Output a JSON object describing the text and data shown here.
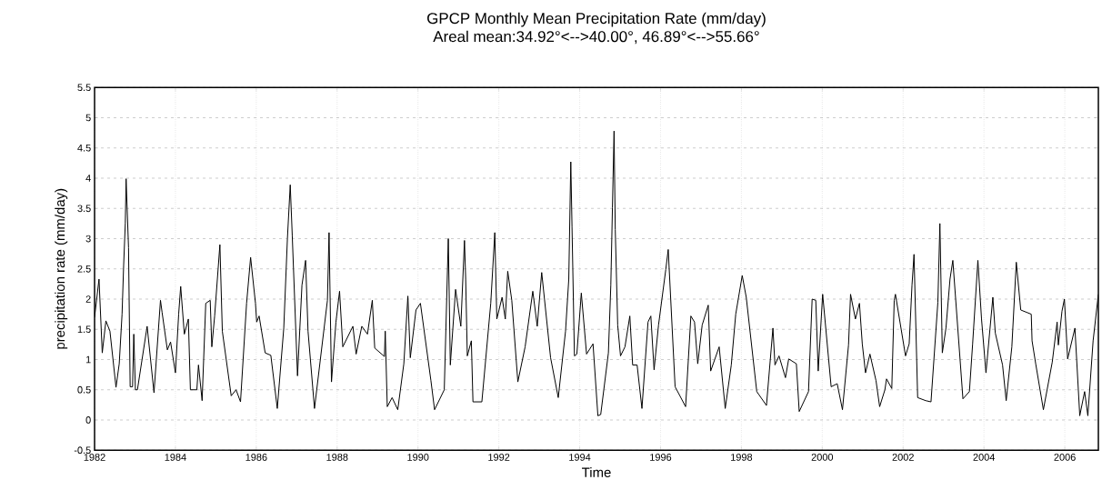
{
  "chart_data": {
    "type": "line",
    "title": "GPCP Monthly Mean Precipitation Rate (mm/day)",
    "subtitle": "Areal mean:34.92°<-->40.00°, 46.89°<-->55.66°",
    "xlabel": "Time",
    "ylabel": "precipitation rate (mm/day)",
    "x": [
      1982.0,
      1982.11,
      1982.19,
      1982.28,
      1982.38,
      1982.53,
      1982.61,
      1982.68,
      1982.72,
      1982.76,
      1982.78,
      1982.84,
      1982.88,
      1982.94,
      1982.97,
      1983.01,
      1983.06,
      1983.3,
      1983.47,
      1983.63,
      1983.67,
      1983.8,
      1983.88,
      1984.0,
      1984.08,
      1984.13,
      1984.22,
      1984.32,
      1984.37,
      1984.53,
      1984.57,
      1984.66,
      1984.75,
      1984.86,
      1984.9,
      1984.97,
      1985.1,
      1985.16,
      1985.38,
      1985.5,
      1985.61,
      1985.76,
      1985.86,
      1985.98,
      1986.01,
      1986.07,
      1986.22,
      1986.36,
      1986.52,
      1986.68,
      1986.77,
      1986.84,
      1986.89,
      1987.02,
      1987.13,
      1987.22,
      1987.28,
      1987.44,
      1987.76,
      1987.8,
      1987.86,
      1987.97,
      1988.06,
      1988.14,
      1988.39,
      1988.47,
      1988.61,
      1988.75,
      1988.87,
      1988.93,
      1989.17,
      1989.19,
      1989.24,
      1989.36,
      1989.5,
      1989.65,
      1989.75,
      1989.81,
      1989.95,
      1990.06,
      1990.32,
      1990.41,
      1990.65,
      1990.75,
      1990.8,
      1990.93,
      1991.06,
      1991.15,
      1991.18,
      1991.22,
      1991.32,
      1991.36,
      1991.58,
      1991.8,
      1991.9,
      1991.95,
      1992.08,
      1992.16,
      1992.22,
      1992.32,
      1992.47,
      1992.65,
      1992.84,
      1992.95,
      1993.06,
      1993.28,
      1993.47,
      1993.65,
      1993.73,
      1993.78,
      1993.81,
      1993.87,
      1993.93,
      1994.04,
      1994.17,
      1994.33,
      1994.45,
      1994.52,
      1994.71,
      1994.77,
      1994.81,
      1994.85,
      1994.88,
      1994.94,
      1995.01,
      1995.12,
      1995.24,
      1995.31,
      1995.42,
      1995.54,
      1995.69,
      1995.76,
      1995.84,
      1995.95,
      1996.13,
      1996.19,
      1996.36,
      1996.62,
      1996.75,
      1996.84,
      1996.92,
      1997.03,
      1997.18,
      1997.24,
      1997.45,
      1997.6,
      1997.75,
      1997.86,
      1998.02,
      1998.12,
      1998.38,
      1998.62,
      1998.78,
      1998.83,
      1998.93,
      1999.09,
      1999.17,
      1999.36,
      1999.43,
      1999.66,
      1999.75,
      1999.84,
      1999.9,
      2000.01,
      2000.22,
      2000.37,
      2000.5,
      2000.65,
      2000.7,
      2000.82,
      2000.92,
      2000.99,
      2001.07,
      2001.18,
      2001.33,
      2001.42,
      2001.55,
      2001.59,
      2001.72,
      2001.78,
      2001.81,
      2002.06,
      2002.15,
      2002.22,
      2002.27,
      2002.36,
      2002.56,
      2002.69,
      2002.86,
      2002.91,
      2002.97,
      2003.06,
      2003.16,
      2003.23,
      2003.48,
      2003.64,
      2003.72,
      2003.85,
      2003.94,
      2004.05,
      2004.22,
      2004.28,
      2004.46,
      2004.55,
      2004.69,
      2004.8,
      2004.91,
      2005.17,
      2005.19,
      2005.28,
      2005.47,
      2005.69,
      2005.81,
      2005.84,
      2005.93,
      2005.99,
      2006.07,
      2006.25,
      2006.37,
      2006.49,
      2006.57,
      2006.7,
      2006.83
    ],
    "values": [
      1.7,
      2.33,
      1.11,
      1.64,
      1.47,
      0.54,
      0.93,
      1.75,
      2.57,
      3.25,
      3.99,
      2.85,
      0.55,
      0.55,
      1.42,
      0.5,
      0.5,
      1.55,
      0.45,
      1.98,
      1.78,
      1.16,
      1.29,
      0.78,
      1.75,
      2.21,
      1.42,
      1.67,
      0.5,
      0.5,
      0.91,
      0.32,
      1.93,
      1.98,
      1.21,
      1.72,
      2.9,
      1.47,
      0.4,
      0.5,
      0.3,
      1.93,
      2.69,
      1.93,
      1.62,
      1.72,
      1.11,
      1.07,
      0.19,
      1.52,
      3.0,
      3.89,
      3.05,
      0.73,
      2.23,
      2.64,
      1.47,
      0.19,
      1.98,
      3.1,
      0.63,
      1.62,
      2.13,
      1.21,
      1.55,
      1.09,
      1.55,
      1.42,
      1.98,
      1.19,
      1.05,
      1.47,
      0.22,
      0.37,
      0.17,
      0.93,
      2.05,
      1.03,
      1.82,
      1.93,
      0.65,
      0.17,
      0.5,
      3.0,
      0.91,
      2.16,
      1.55,
      2.97,
      2.33,
      1.06,
      1.31,
      0.3,
      0.3,
      1.93,
      3.1,
      1.67,
      2.03,
      1.67,
      2.46,
      1.98,
      0.63,
      1.21,
      2.13,
      1.55,
      2.44,
      1.03,
      0.37,
      1.47,
      2.33,
      4.27,
      3.2,
      1.06,
      1.09,
      2.1,
      1.09,
      1.26,
      0.07,
      0.09,
      1.11,
      2.23,
      3.51,
      4.78,
      3.15,
      1.57,
      1.06,
      1.21,
      1.72,
      0.91,
      0.91,
      0.19,
      1.62,
      1.72,
      0.83,
      1.57,
      2.49,
      2.82,
      0.55,
      0.22,
      1.72,
      1.62,
      0.93,
      1.57,
      1.9,
      0.81,
      1.21,
      0.19,
      0.91,
      1.75,
      2.39,
      2.03,
      0.47,
      0.24,
      1.52,
      0.91,
      1.06,
      0.7,
      1.01,
      0.93,
      0.14,
      0.47,
      2.0,
      1.98,
      0.81,
      2.08,
      0.55,
      0.6,
      0.17,
      1.24,
      2.08,
      1.67,
      1.93,
      1.26,
      0.78,
      1.09,
      0.65,
      0.22,
      0.5,
      0.68,
      0.52,
      1.98,
      2.08,
      1.06,
      1.26,
      2.23,
      2.74,
      0.37,
      0.32,
      0.3,
      1.95,
      3.25,
      1.11,
      1.52,
      2.33,
      2.64,
      0.35,
      0.47,
      1.26,
      2.64,
      1.67,
      0.78,
      2.03,
      1.44,
      0.91,
      0.32,
      1.21,
      2.61,
      1.82,
      1.75,
      1.31,
      0.93,
      0.17,
      0.96,
      1.62,
      1.24,
      1.8,
      2.0,
      1.01,
      1.52,
      0.07,
      0.47,
      0.07,
      1.31,
      2.08
    ],
    "color": "#000000",
    "xlim": [
      1982,
      2006.83
    ],
    "xticks": [
      1982,
      1984,
      1986,
      1988,
      1990,
      1992,
      1994,
      1996,
      1998,
      2000,
      2002,
      2004,
      2006
    ],
    "ylim": [
      -0.5,
      5.5
    ],
    "yticks": [
      -0.5,
      0,
      0.5,
      1,
      1.5,
      2,
      2.5,
      3,
      3.5,
      4,
      4.5,
      5,
      5.5
    ],
    "grid": true
  }
}
